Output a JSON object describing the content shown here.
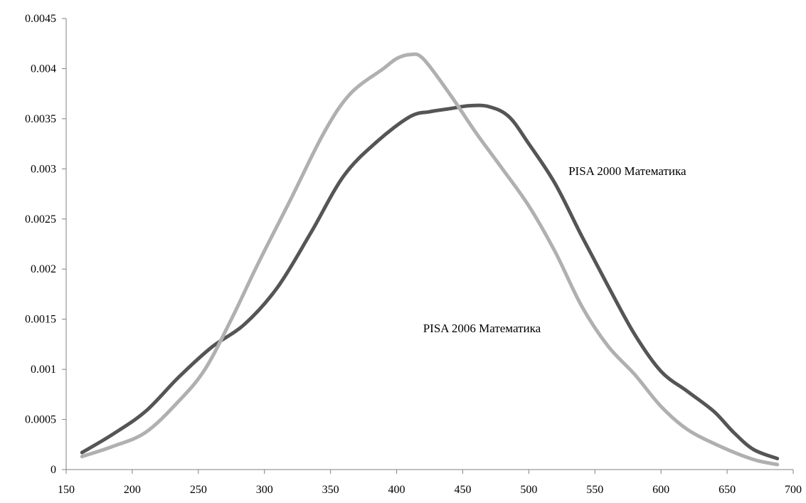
{
  "chart_data": {
    "type": "line",
    "title": "",
    "xlabel": "",
    "ylabel": "",
    "xlim": [
      150,
      700
    ],
    "ylim": [
      0,
      0.0045
    ],
    "x_ticks": [
      "150",
      "200",
      "250",
      "300",
      "350",
      "400",
      "450",
      "500",
      "550",
      "600",
      "650",
      "700"
    ],
    "y_ticks": [
      "0",
      "0.0005",
      "0.001",
      "0.0015",
      "0.002",
      "0.0025",
      "0.003",
      "0.0035",
      "0.004",
      "0.0045"
    ],
    "grid": false,
    "legend": "none",
    "series": [
      {
        "color": "#555555",
        "x": [
          162,
          185,
          210,
          235,
          260,
          285,
          310,
          335,
          360,
          385,
          410,
          425,
          440,
          455,
          470,
          485,
          500,
          520,
          540,
          560,
          580,
          600,
          620,
          640,
          655,
          670,
          688
        ],
        "y": [
          0.00017,
          0.00035,
          0.00058,
          0.00092,
          0.00122,
          0.00145,
          0.00182,
          0.00236,
          0.00293,
          0.00327,
          0.00352,
          0.00357,
          0.0036,
          0.00363,
          0.00362,
          0.00352,
          0.00325,
          0.00285,
          0.00233,
          0.00183,
          0.00135,
          0.00098,
          0.00078,
          0.00058,
          0.00037,
          0.0002,
          0.00011
        ]
      },
      {
        "color": "#b0b0b0",
        "x": [
          162,
          185,
          210,
          235,
          255,
          275,
          295,
          320,
          345,
          365,
          390,
          400,
          410,
          420,
          440,
          460,
          480,
          500,
          520,
          540,
          560,
          580,
          600,
          620,
          645,
          670,
          688
        ],
        "y": [
          0.00013,
          0.00023,
          0.00037,
          0.00068,
          0.001,
          0.0015,
          0.00205,
          0.0027,
          0.00336,
          0.00375,
          0.004,
          0.0041,
          0.00414,
          0.0041,
          0.00375,
          0.00336,
          0.003,
          0.00263,
          0.00217,
          0.00163,
          0.00123,
          0.00095,
          0.00063,
          0.0004,
          0.00023,
          0.0001,
          5e-05
        ]
      }
    ],
    "annotations": [
      {
        "text": "PISA 2000 Математика",
        "x": 530,
        "y": 0.00294
      },
      {
        "text": "PISA 2006 Математика",
        "x": 420,
        "y": 0.00137
      }
    ]
  }
}
